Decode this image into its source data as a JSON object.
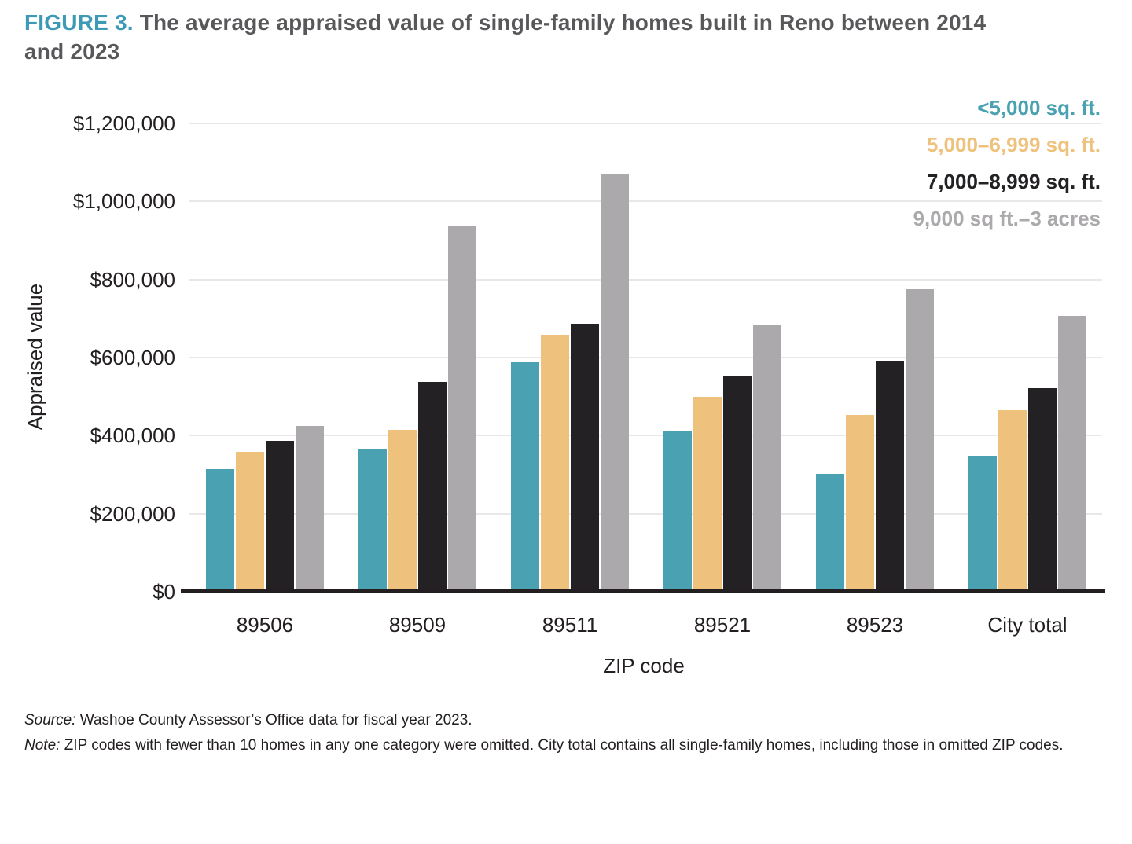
{
  "title": {
    "label": "FIGURE 3.",
    "text": "The average appraised value of single-family homes built in Reno between 2014 and 2023"
  },
  "chart_data": {
    "type": "bar",
    "title": "The average appraised value of single-family homes built in Reno between 2014 and 2023",
    "xlabel": "ZIP code",
    "ylabel": "Appraised value",
    "ylim": [
      0,
      1200000
    ],
    "grid": true,
    "legend_position": "top-right",
    "categories": [
      "89506",
      "89509",
      "89511",
      "89521",
      "89523",
      "City total"
    ],
    "yticks": [
      {
        "value": 0,
        "label": "$0"
      },
      {
        "value": 200000,
        "label": "$200,000"
      },
      {
        "value": 400000,
        "label": "$400,000"
      },
      {
        "value": 600000,
        "label": "$600,000"
      },
      {
        "value": 800000,
        "label": "$800,000"
      },
      {
        "value": 1000000,
        "label": "$1,000,000"
      },
      {
        "value": 1200000,
        "label": "$1,200,000"
      }
    ],
    "series": [
      {
        "name": "<5,000 sq. ft.",
        "color": "#4AA1B1",
        "values": [
          308000,
          360000,
          581000,
          404000,
          296000,
          343000
        ]
      },
      {
        "name": "5,000–6,999 sq. ft.",
        "color": "#EEC27C",
        "values": [
          353000,
          409000,
          653000,
          494000,
          446000,
          460000
        ]
      },
      {
        "name": "7,000–8,999 sq. ft.",
        "color": "#232124",
        "values": [
          380000,
          532000,
          681000,
          546000,
          585000,
          515000
        ]
      },
      {
        "name": "9,000 sq ft.–3 acres",
        "color": "#ABA9AC",
        "values": [
          419000,
          931000,
          1063000,
          676000,
          770000,
          701000
        ]
      }
    ]
  },
  "footer": {
    "source_label": "Source:",
    "source_text": "Washoe County Assessor’s Office data for fiscal year 2023.",
    "note_label": "Note:",
    "note_text": "ZIP codes with fewer than 10 homes in any one category were omitted. City total contains all single-family homes, including those in omitted ZIP codes."
  },
  "colors": {
    "title_label": "#3C9AB6",
    "title_text": "#58585B",
    "gridline": "#E8E8E8",
    "axis_line": "#231F20",
    "text": "#231F20"
  }
}
